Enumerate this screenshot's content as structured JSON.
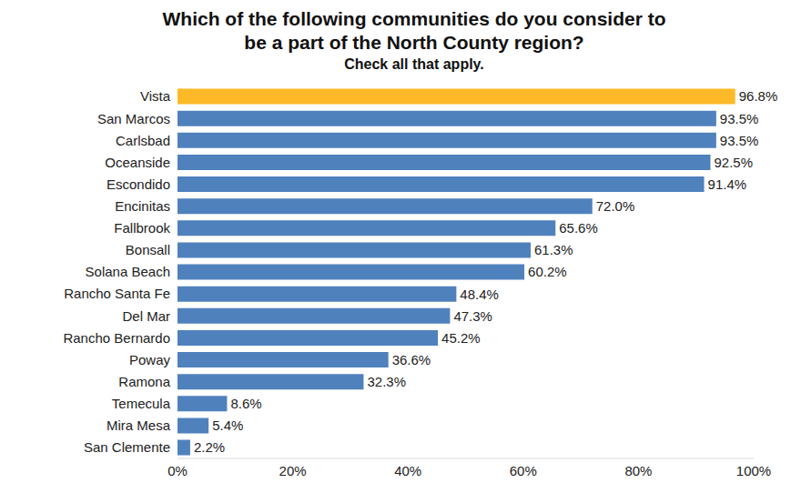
{
  "chart_data": {
    "type": "bar",
    "title": "Which of the following communities do you consider to be a part of the North County region?",
    "subtitle": "Check all that apply.",
    "orientation": "horizontal",
    "categories": [
      "Vista",
      "San Marcos",
      "Carlsbad",
      "Oceanside",
      "Escondido",
      "Encinitas",
      "Fallbrook",
      "Bonsall",
      "Solana Beach",
      "Rancho Santa Fe",
      "Del Mar",
      "Rancho Bernardo",
      "Poway",
      "Ramona",
      "Temecula",
      "Mira Mesa",
      "San Clemente"
    ],
    "values": [
      96.8,
      93.5,
      93.5,
      92.5,
      91.4,
      72.0,
      65.6,
      61.3,
      60.2,
      48.4,
      47.3,
      45.2,
      36.6,
      32.3,
      8.6,
      5.4,
      2.2
    ],
    "value_labels": [
      "96.8%",
      "93.5%",
      "93.5%",
      "92.5%",
      "91.4%",
      "72.0%",
      "65.6%",
      "61.3%",
      "60.2%",
      "48.4%",
      "47.3%",
      "45.2%",
      "36.6%",
      "32.3%",
      "8.6%",
      "5.4%",
      "2.2%"
    ],
    "colors": [
      "#FDB927",
      "#4F81BD",
      "#4F81BD",
      "#4F81BD",
      "#4F81BD",
      "#4F81BD",
      "#4F81BD",
      "#4F81BD",
      "#4F81BD",
      "#4F81BD",
      "#4F81BD",
      "#4F81BD",
      "#4F81BD",
      "#4F81BD",
      "#4F81BD",
      "#4F81BD",
      "#4F81BD"
    ],
    "xlim": [
      0,
      100
    ],
    "xticks": [
      {
        "value": 0,
        "label": "0%"
      },
      {
        "value": 20,
        "label": "20%"
      },
      {
        "value": 40,
        "label": "40%"
      },
      {
        "value": 60,
        "label": "60%"
      },
      {
        "value": 80,
        "label": "80%"
      },
      {
        "value": 100,
        "label": "100%"
      }
    ],
    "data_labels": true,
    "grid": false
  }
}
